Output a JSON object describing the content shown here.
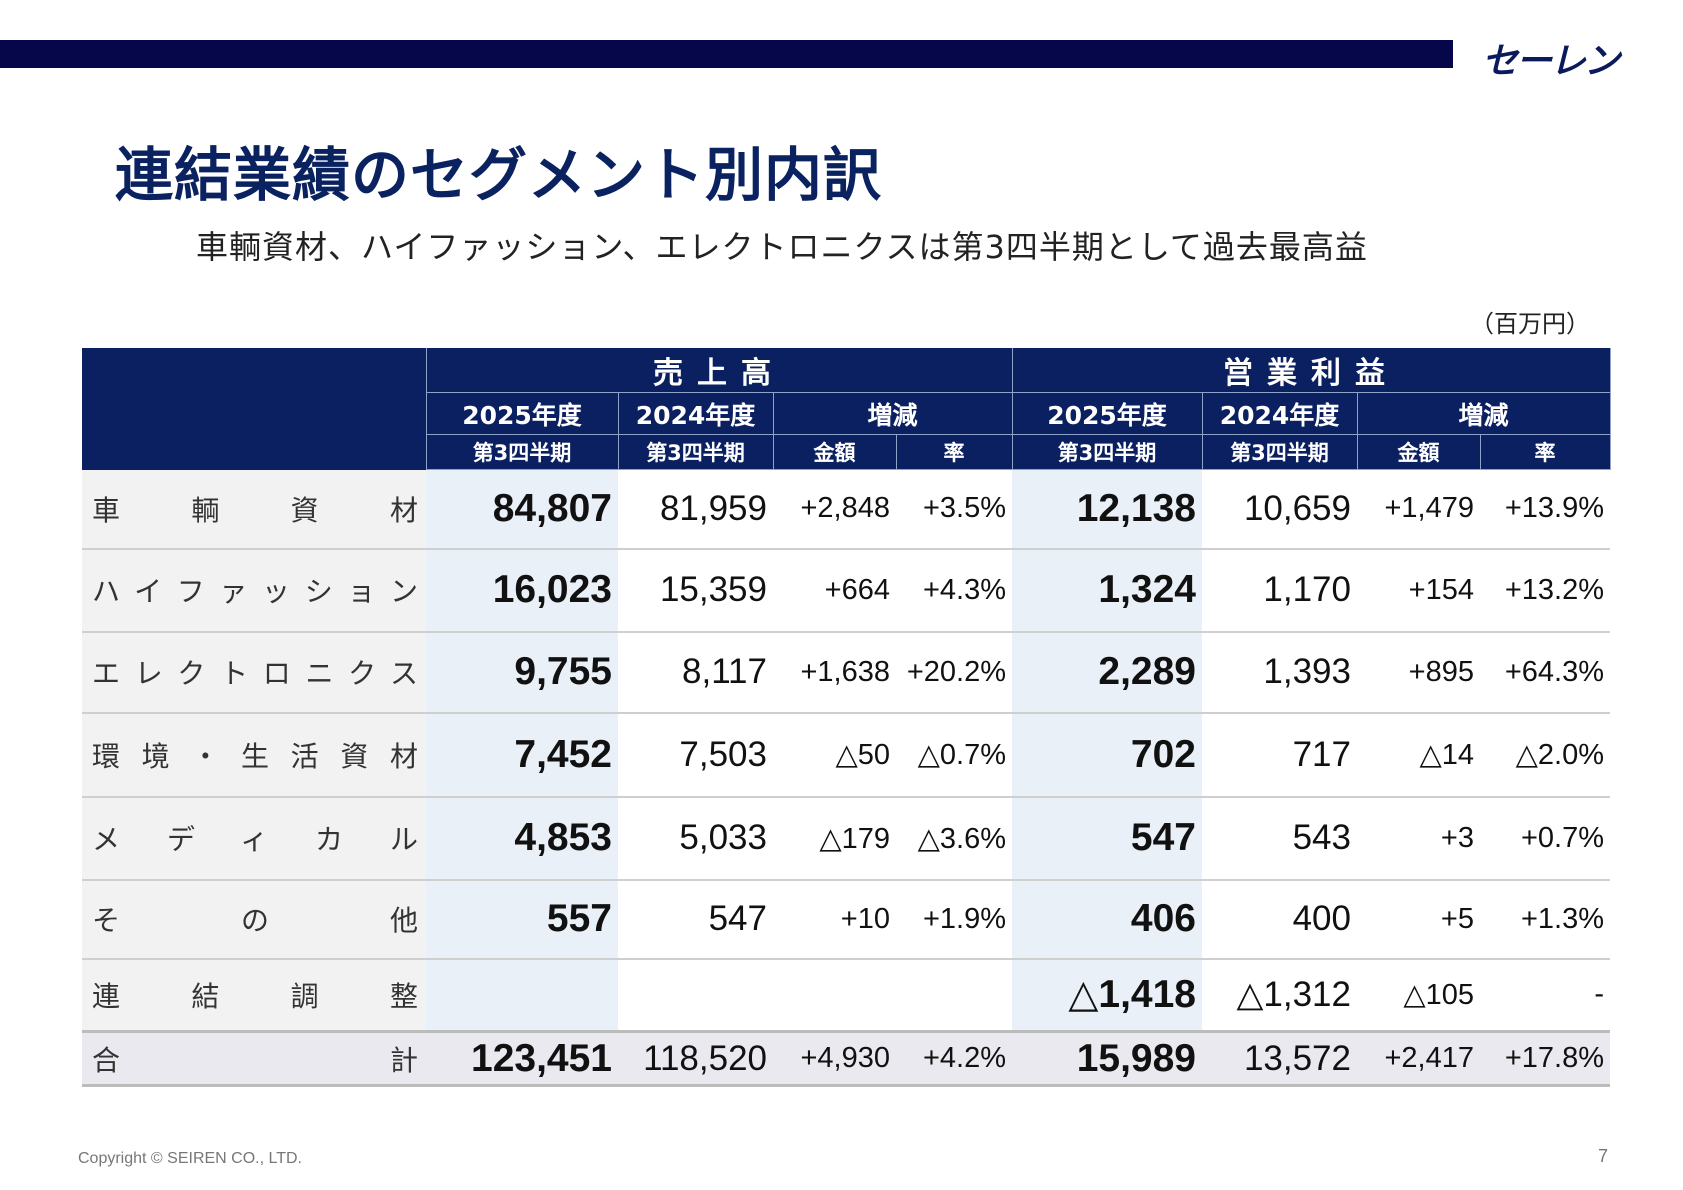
{
  "header": {
    "logo": "セーレン"
  },
  "title": "連結業績のセグメント別内訳",
  "subtitle": "車輌資材、ハイファッション、エレクトロニクスは第3四半期として過去最高益",
  "unit": "（百万円）",
  "table": {
    "groups": [
      "売上高",
      "営業利益"
    ],
    "year_current": "2025年度",
    "year_prev": "2024年度",
    "change": "増減",
    "quarter": "第3四半期",
    "amount": "金額",
    "rate": "率",
    "rows": [
      {
        "label": "車輌資材",
        "cells": [
          "84,807",
          "81,959",
          "+2,848",
          "+3.5%",
          "12,138",
          "10,659",
          "+1,479",
          "+13.9%"
        ]
      },
      {
        "label": "ハイファッション",
        "cells": [
          "16,023",
          "15,359",
          "+664",
          "+4.3%",
          "1,324",
          "1,170",
          "+154",
          "+13.2%"
        ]
      },
      {
        "label": "エレクトロニクス",
        "cells": [
          "9,755",
          "8,117",
          "+1,638",
          "+20.2%",
          "2,289",
          "1,393",
          "+895",
          "+64.3%"
        ]
      },
      {
        "label": "環境・生活資材",
        "cells": [
          "7,452",
          "7,503",
          "△50",
          "△0.7%",
          "702",
          "717",
          "△14",
          "△2.0%"
        ]
      },
      {
        "label": "メディカル",
        "cells": [
          "4,853",
          "5,033",
          "△179",
          "△3.6%",
          "547",
          "543",
          "+3",
          "+0.7%"
        ]
      },
      {
        "label": "その他",
        "cells": [
          "557",
          "547",
          "+10",
          "+1.9%",
          "406",
          "400",
          "+5",
          "+1.3%"
        ]
      },
      {
        "label": "連結調整",
        "cells": [
          "",
          "",
          "",
          "",
          "△1,418",
          "△1,312",
          "△105",
          "-"
        ]
      },
      {
        "label": "合計",
        "cells": [
          "123,451",
          "118,520",
          "+4,930",
          "+4.2%",
          "15,989",
          "13,572",
          "+2,417",
          "+17.8%"
        ]
      }
    ]
  },
  "footer": {
    "copyright": "Copyright © SEIREN CO., LTD.",
    "page": "7"
  }
}
